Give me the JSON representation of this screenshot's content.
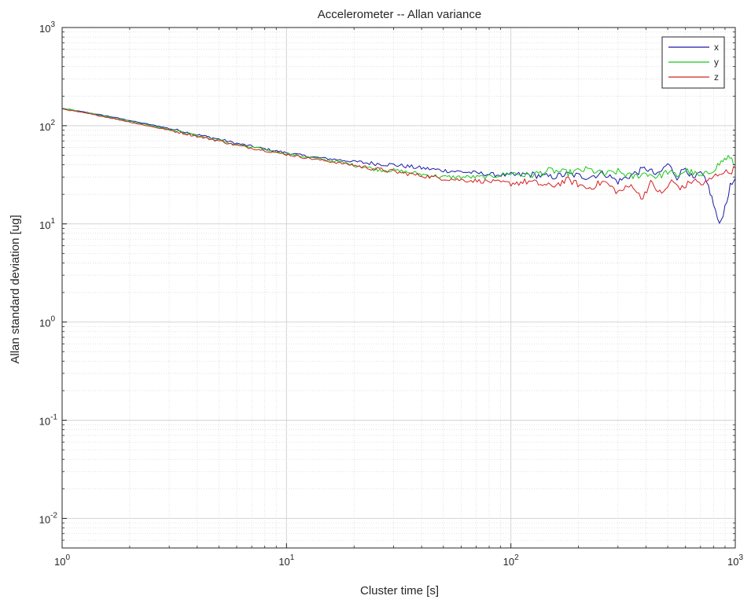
{
  "chart_data": {
    "type": "line",
    "title": "Accelerometer -- Allan variance",
    "xlabel": "Cluster time [s]",
    "ylabel": "Allan standard deviation [ug]",
    "x_scale": "log",
    "y_scale": "log",
    "xlim": [
      1,
      1000
    ],
    "ylim": [
      0.005,
      1000
    ],
    "grid": true,
    "minor_grid": true,
    "legend_position": "top-right",
    "x_ticks": [
      {
        "base": "10",
        "exp": "0",
        "value": 1
      },
      {
        "base": "10",
        "exp": "1",
        "value": 10
      },
      {
        "base": "10",
        "exp": "2",
        "value": 100
      },
      {
        "base": "10",
        "exp": "3",
        "value": 1000
      }
    ],
    "y_ticks": [
      {
        "base": "10",
        "exp": "-2",
        "value": 0.01
      },
      {
        "base": "10",
        "exp": "-1",
        "value": 0.1
      },
      {
        "base": "10",
        "exp": "0",
        "value": 1
      },
      {
        "base": "10",
        "exp": "1",
        "value": 10
      },
      {
        "base": "10",
        "exp": "2",
        "value": 100
      },
      {
        "base": "10",
        "exp": "3",
        "value": 1000
      }
    ],
    "series": [
      {
        "name": "x",
        "color": "#1a1aa8",
        "points": [
          [
            1,
            150
          ],
          [
            1.3,
            136
          ],
          [
            1.7,
            122
          ],
          [
            2.2,
            108
          ],
          [
            3,
            94
          ],
          [
            4,
            81
          ],
          [
            5,
            73
          ],
          [
            6,
            66
          ],
          [
            8,
            58
          ],
          [
            10,
            53
          ],
          [
            13,
            48
          ],
          [
            17,
            45
          ],
          [
            22,
            42
          ],
          [
            30,
            40
          ],
          [
            40,
            37
          ],
          [
            50,
            35
          ],
          [
            60,
            34
          ],
          [
            80,
            32
          ],
          [
            100,
            31
          ],
          [
            120,
            32
          ],
          [
            150,
            30
          ],
          [
            180,
            32
          ],
          [
            220,
            30
          ],
          [
            260,
            33
          ],
          [
            300,
            27
          ],
          [
            350,
            32
          ],
          [
            400,
            37
          ],
          [
            450,
            31
          ],
          [
            500,
            41
          ],
          [
            550,
            30
          ],
          [
            600,
            38
          ],
          [
            650,
            28
          ],
          [
            700,
            33
          ],
          [
            760,
            24
          ],
          [
            800,
            16
          ],
          [
            850,
            9.5
          ],
          [
            900,
            15
          ],
          [
            950,
            24
          ],
          [
            1000,
            29
          ]
        ]
      },
      {
        "name": "y",
        "color": "#19c819",
        "points": [
          [
            1,
            150
          ],
          [
            1.3,
            135
          ],
          [
            1.7,
            120
          ],
          [
            2.2,
            106
          ],
          [
            3,
            92
          ],
          [
            4,
            79
          ],
          [
            5,
            71
          ],
          [
            6,
            64
          ],
          [
            8,
            57
          ],
          [
            10,
            52
          ],
          [
            13,
            47
          ],
          [
            17,
            43
          ],
          [
            20,
            40
          ],
          [
            25,
            36
          ],
          [
            30,
            35
          ],
          [
            40,
            32
          ],
          [
            50,
            30
          ],
          [
            60,
            30
          ],
          [
            80,
            30
          ],
          [
            100,
            33
          ],
          [
            120,
            31
          ],
          [
            150,
            35
          ],
          [
            180,
            33
          ],
          [
            220,
            36
          ],
          [
            260,
            32
          ],
          [
            300,
            34
          ],
          [
            350,
            30
          ],
          [
            400,
            33
          ],
          [
            450,
            30
          ],
          [
            500,
            34
          ],
          [
            550,
            31
          ],
          [
            600,
            35
          ],
          [
            650,
            33
          ],
          [
            700,
            30
          ],
          [
            760,
            33
          ],
          [
            820,
            38
          ],
          [
            880,
            44
          ],
          [
            930,
            48
          ],
          [
            1000,
            40
          ]
        ]
      },
      {
        "name": "z",
        "color": "#d42020",
        "points": [
          [
            1,
            148
          ],
          [
            1.3,
            133
          ],
          [
            1.7,
            118
          ],
          [
            2.2,
            104
          ],
          [
            3,
            90
          ],
          [
            4,
            78
          ],
          [
            5,
            70
          ],
          [
            6,
            63
          ],
          [
            8,
            56
          ],
          [
            10,
            51
          ],
          [
            13,
            46
          ],
          [
            17,
            42
          ],
          [
            22,
            38
          ],
          [
            30,
            34
          ],
          [
            40,
            31
          ],
          [
            50,
            29
          ],
          [
            60,
            28
          ],
          [
            80,
            27
          ],
          [
            100,
            26
          ],
          [
            120,
            27
          ],
          [
            150,
            24
          ],
          [
            180,
            28
          ],
          [
            220,
            23
          ],
          [
            260,
            27
          ],
          [
            300,
            21
          ],
          [
            350,
            25
          ],
          [
            380,
            18
          ],
          [
            420,
            26
          ],
          [
            470,
            20
          ],
          [
            520,
            27
          ],
          [
            580,
            23
          ],
          [
            650,
            28
          ],
          [
            720,
            25
          ],
          [
            800,
            30
          ],
          [
            870,
            34
          ],
          [
            930,
            33
          ],
          [
            1000,
            37
          ]
        ]
      }
    ]
  }
}
